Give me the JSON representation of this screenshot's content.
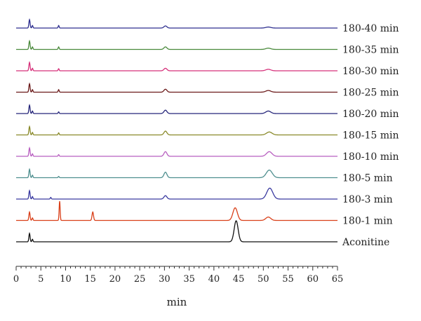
{
  "chart_data": {
    "type": "line",
    "title": "",
    "xlabel": "min",
    "ylabel": "",
    "xlim": [
      0,
      65
    ],
    "x_ticks": [
      0,
      5,
      10,
      15,
      20,
      25,
      30,
      35,
      40,
      45,
      50,
      55,
      60,
      65
    ],
    "grid": false,
    "legend": "inline-right",
    "series": [
      {
        "name": "180-40 min",
        "color": "#2e2f8f",
        "peaks": [
          {
            "x": 2.7,
            "h": 1.0,
            "w": 0.12
          },
          {
            "x": 3.3,
            "h": 0.3,
            "w": 0.1
          },
          {
            "x": 8.6,
            "h": 0.3,
            "w": 0.1
          },
          {
            "x": 30.2,
            "h": 0.25,
            "w": 0.3
          },
          {
            "x": 51.0,
            "h": 0.12,
            "w": 0.5
          }
        ]
      },
      {
        "name": "180-35 min",
        "color": "#4a8a3c",
        "peaks": [
          {
            "x": 2.7,
            "h": 1.0,
            "w": 0.12
          },
          {
            "x": 3.3,
            "h": 0.3,
            "w": 0.1
          },
          {
            "x": 8.6,
            "h": 0.3,
            "w": 0.1
          },
          {
            "x": 30.2,
            "h": 0.3,
            "w": 0.3
          },
          {
            "x": 51.0,
            "h": 0.15,
            "w": 0.5
          }
        ]
      },
      {
        "name": "180-30 min",
        "color": "#d6307a",
        "peaks": [
          {
            "x": 2.7,
            "h": 1.0,
            "w": 0.12
          },
          {
            "x": 3.3,
            "h": 0.3,
            "w": 0.1
          },
          {
            "x": 8.6,
            "h": 0.25,
            "w": 0.1
          },
          {
            "x": 30.2,
            "h": 0.3,
            "w": 0.3
          },
          {
            "x": 51.0,
            "h": 0.18,
            "w": 0.5
          }
        ]
      },
      {
        "name": "180-25 min",
        "color": "#6b1a1a",
        "peaks": [
          {
            "x": 2.7,
            "h": 1.0,
            "w": 0.12
          },
          {
            "x": 3.3,
            "h": 0.3,
            "w": 0.1
          },
          {
            "x": 8.6,
            "h": 0.3,
            "w": 0.1
          },
          {
            "x": 30.2,
            "h": 0.35,
            "w": 0.3
          },
          {
            "x": 51.0,
            "h": 0.2,
            "w": 0.5
          }
        ]
      },
      {
        "name": "180-20 min",
        "color": "#26267a",
        "peaks": [
          {
            "x": 2.7,
            "h": 1.0,
            "w": 0.12
          },
          {
            "x": 3.3,
            "h": 0.3,
            "w": 0.1
          },
          {
            "x": 8.6,
            "h": 0.2,
            "w": 0.1
          },
          {
            "x": 30.2,
            "h": 0.4,
            "w": 0.3
          },
          {
            "x": 51.0,
            "h": 0.3,
            "w": 0.5
          }
        ]
      },
      {
        "name": "180-15 min",
        "color": "#8a8a2a",
        "peaks": [
          {
            "x": 2.7,
            "h": 1.0,
            "w": 0.12
          },
          {
            "x": 3.3,
            "h": 0.3,
            "w": 0.1
          },
          {
            "x": 8.6,
            "h": 0.25,
            "w": 0.1
          },
          {
            "x": 30.2,
            "h": 0.45,
            "w": 0.3
          },
          {
            "x": 51.2,
            "h": 0.35,
            "w": 0.55
          }
        ]
      },
      {
        "name": "180-10 min",
        "color": "#b85fc0",
        "peaks": [
          {
            "x": 2.7,
            "h": 1.0,
            "w": 0.12
          },
          {
            "x": 3.3,
            "h": 0.3,
            "w": 0.1
          },
          {
            "x": 8.6,
            "h": 0.2,
            "w": 0.1
          },
          {
            "x": 30.2,
            "h": 0.55,
            "w": 0.3
          },
          {
            "x": 51.2,
            "h": 0.55,
            "w": 0.55
          }
        ]
      },
      {
        "name": "180-5 min",
        "color": "#4f8f8f",
        "peaks": [
          {
            "x": 2.7,
            "h": 1.0,
            "w": 0.12
          },
          {
            "x": 3.3,
            "h": 0.3,
            "w": 0.1
          },
          {
            "x": 8.6,
            "h": 0.15,
            "w": 0.1
          },
          {
            "x": 30.2,
            "h": 0.65,
            "w": 0.3
          },
          {
            "x": 51.2,
            "h": 0.9,
            "w": 0.6
          }
        ]
      },
      {
        "name": "180-3 min",
        "color": "#3a3aa0",
        "peaks": [
          {
            "x": 2.7,
            "h": 1.0,
            "w": 0.12
          },
          {
            "x": 3.3,
            "h": 0.3,
            "w": 0.1
          },
          {
            "x": 7.0,
            "h": 0.2,
            "w": 0.1
          },
          {
            "x": 30.2,
            "h": 0.4,
            "w": 0.3
          },
          {
            "x": 51.3,
            "h": 1.3,
            "w": 0.6
          }
        ]
      },
      {
        "name": "180-1 min",
        "color": "#d9401a",
        "peaks": [
          {
            "x": 2.7,
            "h": 1.0,
            "w": 0.12
          },
          {
            "x": 3.3,
            "h": 0.3,
            "w": 0.1
          },
          {
            "x": 8.8,
            "h": 2.3,
            "w": 0.1
          },
          {
            "x": 15.5,
            "h": 1.0,
            "w": 0.15
          },
          {
            "x": 44.3,
            "h": 1.5,
            "w": 0.45
          },
          {
            "x": 51.0,
            "h": 0.4,
            "w": 0.5
          }
        ]
      },
      {
        "name": "Aconitine",
        "color": "#111111",
        "peaks": [
          {
            "x": 2.7,
            "h": 1.0,
            "w": 0.12
          },
          {
            "x": 3.3,
            "h": 0.3,
            "w": 0.1
          },
          {
            "x": 44.5,
            "h": 2.5,
            "w": 0.4
          }
        ]
      }
    ]
  }
}
